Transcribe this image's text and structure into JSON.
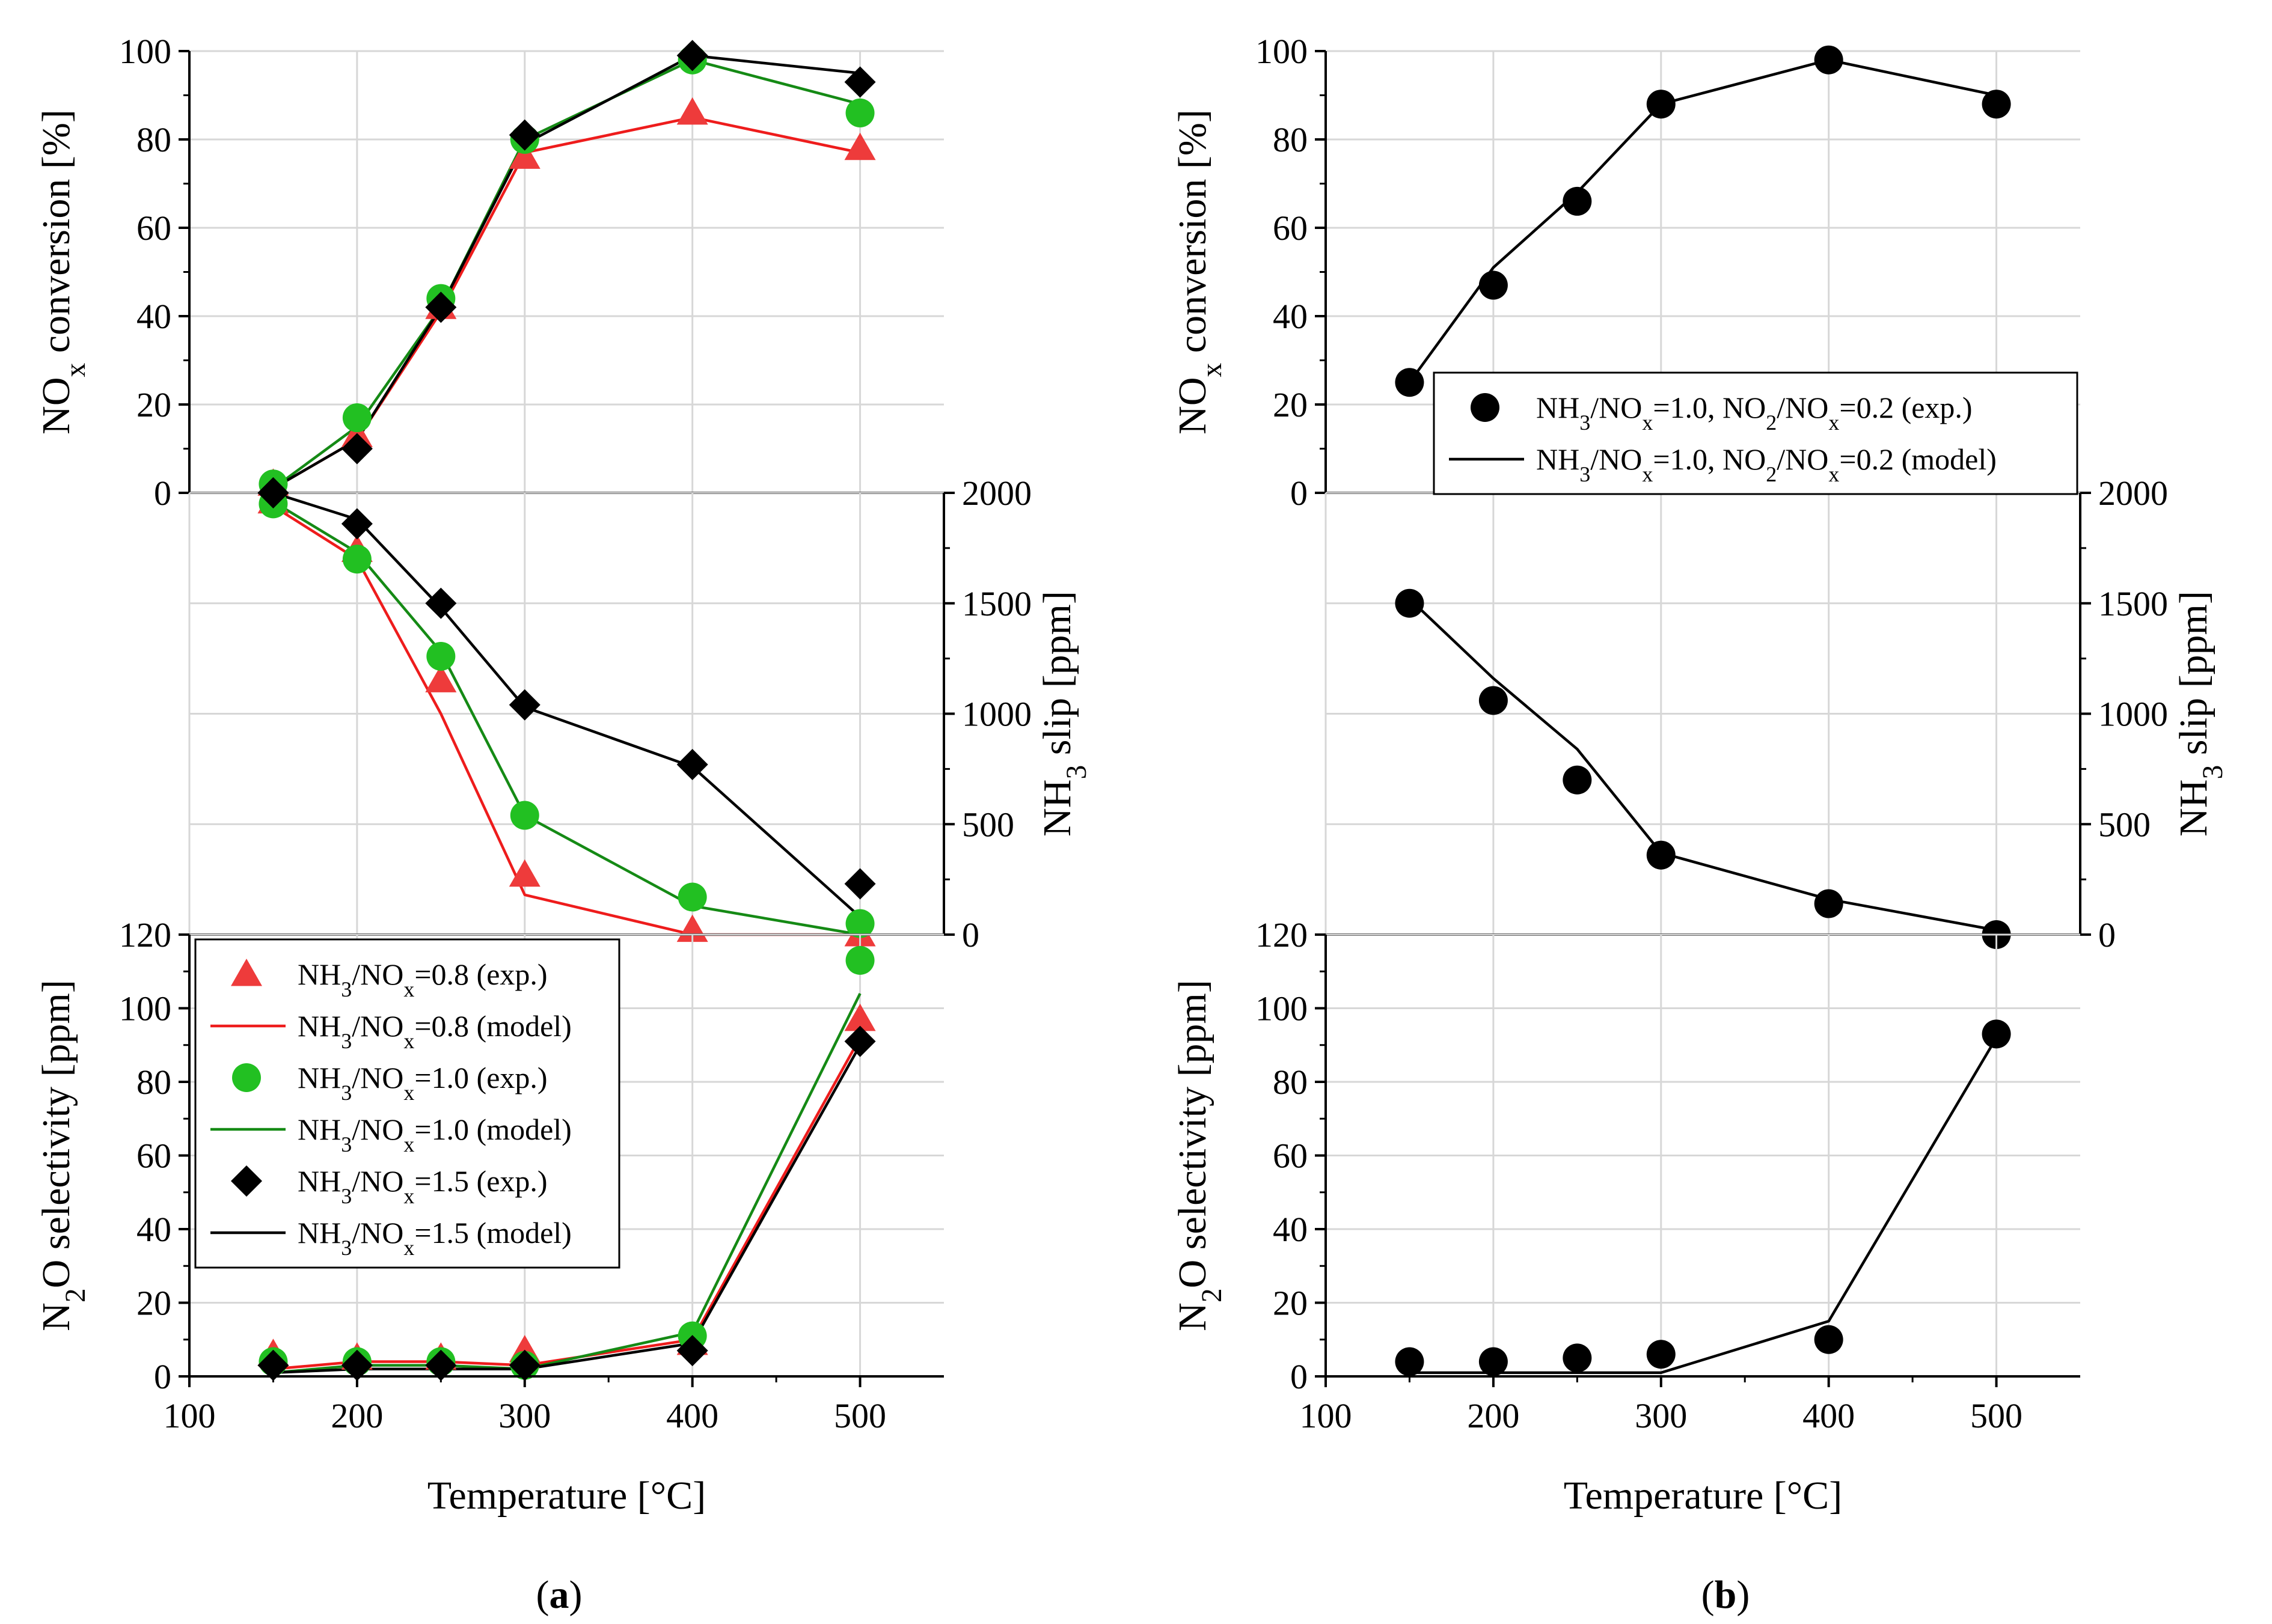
{
  "chart_data": [
    {
      "type": "line",
      "panel": "a",
      "panel_label": "a",
      "xlabel": "Temperature [°C]",
      "xlim": [
        100,
        550
      ],
      "xticks": [
        100,
        200,
        300,
        400,
        500
      ],
      "legend_position": "inside lower-left of bottom subplot",
      "legend": [
        {
          "text": "NH3/NOx=0.8 (exp.)",
          "kind": "marker",
          "marker": "triangle",
          "color": "#ee3b3b"
        },
        {
          "text": "NH3/NOx=0.8 (model)",
          "kind": "line",
          "color": "#ee1c1c"
        },
        {
          "text": "NH3/NOx=1.0 (exp.)",
          "kind": "marker",
          "marker": "circle",
          "color": "#22c022"
        },
        {
          "text": "NH3/NOx=1.0 (model)",
          "kind": "line",
          "color": "#158a15"
        },
        {
          "text": "NH3/NOx=1.5 (exp.)",
          "kind": "marker",
          "marker": "diamond",
          "color": "#000000"
        },
        {
          "text": "NH3/NOx=1.5 (model)",
          "kind": "line",
          "color": "#000000"
        }
      ],
      "subplots": [
        {
          "name": "nox",
          "ylabel": "NOx conversion [%]",
          "ylim": [
            0,
            100
          ],
          "yticks": [
            0,
            20,
            40,
            60,
            80,
            100
          ],
          "y_axis_side": "left",
          "series": [
            {
              "name": "NH3/NOx=0.8 (exp.)",
              "kind": "marker",
              "marker": "triangle",
              "color": "#ee3b3b",
              "x": [
                150,
                200,
                250,
                300,
                400,
                500
              ],
              "y": [
                2,
                13,
                42,
                76,
                86,
                78
              ]
            },
            {
              "name": "NH3/NOx=0.8 (model)",
              "kind": "line",
              "color": "#ee1c1c",
              "x": [
                150,
                200,
                250,
                300,
                400,
                500
              ],
              "y": [
                1,
                12,
                41,
                77,
                85,
                77
              ]
            },
            {
              "name": "NH3/NOx=1.0 (exp.)",
              "kind": "marker",
              "marker": "circle",
              "color": "#22c022",
              "x": [
                150,
                200,
                250,
                300,
                400,
                500
              ],
              "y": [
                2,
                17,
                44,
                80,
                98,
                86
              ]
            },
            {
              "name": "NH3/NOx=1.0 (model)",
              "kind": "line",
              "color": "#158a15",
              "x": [
                150,
                200,
                250,
                300,
                400,
                500
              ],
              "y": [
                1,
                15,
                42,
                80,
                98,
                88
              ]
            },
            {
              "name": "NH3/NOx=1.5 (exp.)",
              "kind": "marker",
              "marker": "diamond",
              "color": "#000000",
              "x": [
                150,
                200,
                250,
                300,
                400,
                500
              ],
              "y": [
                0,
                10,
                42,
                81,
                99,
                93
              ]
            },
            {
              "name": "NH3/NOx=1.5 (model)",
              "kind": "line",
              "color": "#000000",
              "x": [
                150,
                200,
                250,
                300,
                400,
                500
              ],
              "y": [
                1,
                12,
                42,
                79,
                99,
                95
              ]
            }
          ]
        },
        {
          "name": "nh3",
          "ylabel": "NH3 slip [ppm]",
          "ylim": [
            0,
            2000
          ],
          "yticks": [
            0,
            500,
            1000,
            1500,
            2000
          ],
          "y_axis_side": "right",
          "series": [
            {
              "name": "NH3/NOx=0.8 (exp.)",
              "kind": "marker",
              "marker": "triangle",
              "color": "#ee3b3b",
              "x": [
                150,
                200,
                250,
                300,
                400,
                500
              ],
              "y": [
                1960,
                1740,
                1150,
                270,
                20,
                0
              ]
            },
            {
              "name": "NH3/NOx=0.8 (model)",
              "kind": "line",
              "color": "#ee1c1c",
              "x": [
                150,
                200,
                250,
                300,
                400,
                500
              ],
              "y": [
                1940,
                1700,
                1000,
                180,
                0,
                0
              ]
            },
            {
              "name": "NH3/NOx=1.0 (exp.)",
              "kind": "marker",
              "marker": "circle",
              "color": "#22c022",
              "x": [
                150,
                200,
                250,
                300,
                400,
                500
              ],
              "y": [
                1950,
                1700,
                1260,
                540,
                170,
                50
              ]
            },
            {
              "name": "NH3/NOx=1.0 (model)",
              "kind": "line",
              "color": "#158a15",
              "x": [
                150,
                200,
                250,
                300,
                400,
                500
              ],
              "y": [
                1960,
                1730,
                1280,
                540,
                130,
                0
              ]
            },
            {
              "name": "NH3/NOx=1.5 (exp.)",
              "kind": "marker",
              "marker": "diamond",
              "color": "#000000",
              "x": [
                150,
                200,
                250,
                300,
                400,
                500
              ],
              "y": [
                2000,
                1860,
                1500,
                1040,
                770,
                230
              ]
            },
            {
              "name": "NH3/NOx=1.5 (model)",
              "kind": "line",
              "color": "#000000",
              "x": [
                150,
                200,
                250,
                300,
                400,
                500
              ],
              "y": [
                2000,
                1880,
                1480,
                1030,
                760,
                80
              ]
            }
          ]
        },
        {
          "name": "n2o",
          "ylabel": "N2O selectivity [ppm]",
          "ylim": [
            0,
            120
          ],
          "yticks": [
            0,
            20,
            40,
            60,
            80,
            100,
            120
          ],
          "y_axis_side": "left",
          "series": [
            {
              "name": "NH3/NOx=0.8 (exp.)",
              "kind": "marker",
              "marker": "triangle",
              "color": "#ee3b3b",
              "x": [
                150,
                200,
                250,
                300,
                400,
                500
              ],
              "y": [
                6,
                5,
                5,
                7,
                9,
                97
              ]
            },
            {
              "name": "NH3/NOx=0.8 (model)",
              "kind": "line",
              "color": "#ee1c1c",
              "x": [
                150,
                200,
                250,
                300,
                400,
                500
              ],
              "y": [
                2,
                4,
                4,
                3,
                10,
                92
              ]
            },
            {
              "name": "NH3/NOx=1.0 (exp.)",
              "kind": "marker",
              "marker": "circle",
              "color": "#22c022",
              "x": [
                150,
                200,
                250,
                300,
                400,
                500
              ],
              "y": [
                4,
                4,
                4,
                3,
                11,
                113
              ]
            },
            {
              "name": "NH3/NOx=1.0 (model)",
              "kind": "line",
              "color": "#158a15",
              "x": [
                150,
                200,
                250,
                300,
                400,
                500
              ],
              "y": [
                1,
                3,
                3,
                2,
                12,
                104
              ]
            },
            {
              "name": "NH3/NOx=1.5 (exp.)",
              "kind": "marker",
              "marker": "diamond",
              "color": "#000000",
              "x": [
                150,
                200,
                250,
                300,
                400,
                500
              ],
              "y": [
                3,
                3,
                3,
                3,
                7,
                91
              ]
            },
            {
              "name": "NH3/NOx=1.5 (model)",
              "kind": "line",
              "color": "#000000",
              "x": [
                150,
                200,
                250,
                300,
                400,
                500
              ],
              "y": [
                1,
                2,
                2,
                2,
                9,
                90
              ]
            }
          ]
        }
      ]
    },
    {
      "type": "line",
      "panel": "b",
      "panel_label": "b",
      "xlabel": "Temperature [°C]",
      "xlim": [
        100,
        550
      ],
      "xticks": [
        100,
        200,
        300,
        400,
        500
      ],
      "legend_position": "inside lower-right of top subplot",
      "legend": [
        {
          "text": "NH3/NOx=1.0, NO2/NOx=0.2 (exp.)",
          "kind": "marker",
          "marker": "circle",
          "color": "#000000"
        },
        {
          "text": "NH3/NOx=1.0, NO2/NOx=0.2 (model)",
          "kind": "line",
          "color": "#000000"
        }
      ],
      "subplots": [
        {
          "name": "nox",
          "ylabel": "NOx conversion [%]",
          "ylim": [
            0,
            100
          ],
          "yticks": [
            0,
            20,
            40,
            60,
            80,
            100
          ],
          "y_axis_side": "left",
          "series": [
            {
              "name": "NH3/NOx=1.0, NO2/NOx=0.2 (exp.)",
              "kind": "marker",
              "marker": "circle",
              "color": "#000000",
              "x": [
                150,
                200,
                250,
                300,
                400,
                500
              ],
              "y": [
                25,
                47,
                66,
                88,
                98,
                88
              ]
            },
            {
              "name": "NH3/NOx=1.0, NO2/NOx=0.2 (model)",
              "kind": "line",
              "color": "#000000",
              "x": [
                150,
                200,
                250,
                300,
                400,
                500
              ],
              "y": [
                25,
                51,
                68,
                88,
                98,
                90
              ]
            }
          ]
        },
        {
          "name": "nh3",
          "ylabel": "NH3 slip [ppm]",
          "ylim": [
            0,
            2000
          ],
          "yticks": [
            0,
            500,
            1000,
            1500,
            2000
          ],
          "y_axis_side": "right",
          "series": [
            {
              "name": "NH3/NOx=1.0, NO2/NOx=0.2 (exp.)",
              "kind": "marker",
              "marker": "circle",
              "color": "#000000",
              "x": [
                150,
                200,
                250,
                300,
                400,
                500
              ],
              "y": [
                1500,
                1060,
                700,
                360,
                140,
                0
              ]
            },
            {
              "name": "NH3/NOx=1.0, NO2/NOx=0.2 (model)",
              "kind": "line",
              "color": "#000000",
              "x": [
                150,
                200,
                250,
                300,
                400,
                500
              ],
              "y": [
                1520,
                1160,
                840,
                370,
                160,
                20
              ]
            }
          ]
        },
        {
          "name": "n2o",
          "ylabel": "N2O selectivity [ppm]",
          "ylim": [
            0,
            120
          ],
          "yticks": [
            0,
            20,
            40,
            60,
            80,
            100,
            120
          ],
          "y_axis_side": "left",
          "series": [
            {
              "name": "NH3/NOx=1.0, NO2/NOx=0.2 (exp.)",
              "kind": "marker",
              "marker": "circle",
              "color": "#000000",
              "x": [
                150,
                200,
                250,
                300,
                400,
                500
              ],
              "y": [
                4,
                4,
                5,
                6,
                10,
                93
              ]
            },
            {
              "name": "NH3/NOx=1.0, NO2/NOx=0.2 (model)",
              "kind": "line",
              "color": "#000000",
              "x": [
                150,
                200,
                250,
                300,
                400,
                500
              ],
              "y": [
                1,
                1,
                1,
                1,
                15,
                92
              ]
            }
          ]
        }
      ]
    }
  ]
}
